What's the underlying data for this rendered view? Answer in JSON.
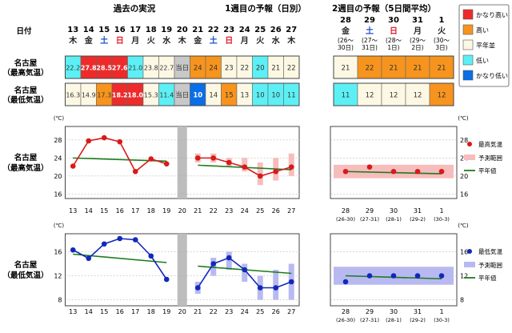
{
  "headers": {
    "past": "過去の実況",
    "week1": "1週目の予報（日別）",
    "week2": "2週目の予報（5日間平均）"
  },
  "date_label": "日付",
  "days": [
    {
      "d": "13",
      "w": "木",
      "wc": "#222"
    },
    {
      "d": "14",
      "w": "金",
      "wc": "#222"
    },
    {
      "d": "15",
      "w": "土",
      "wc": "#1f4fc8"
    },
    {
      "d": "16",
      "w": "日",
      "wc": "#e0202a"
    },
    {
      "d": "17",
      "w": "月",
      "wc": "#222"
    },
    {
      "d": "18",
      "w": "火",
      "wc": "#222"
    },
    {
      "d": "19",
      "w": "水",
      "wc": "#222"
    },
    {
      "d": "20",
      "w": "木",
      "wc": "#222"
    },
    {
      "d": "21",
      "w": "金",
      "wc": "#222"
    },
    {
      "d": "22",
      "w": "土",
      "wc": "#1f4fc8"
    },
    {
      "d": "23",
      "w": "日",
      "wc": "#e0202a"
    },
    {
      "d": "24",
      "w": "月",
      "wc": "#222"
    },
    {
      "d": "25",
      "w": "火",
      "wc": "#222"
    },
    {
      "d": "26",
      "w": "水",
      "wc": "#222"
    },
    {
      "d": "27",
      "w": "木",
      "wc": "#222"
    }
  ],
  "week2_days": [
    {
      "d": "28",
      "w": "金",
      "wc": "#222",
      "r1": "(26～",
      "r2": "30日)"
    },
    {
      "d": "29",
      "w": "土",
      "wc": "#1f4fc8",
      "r1": "(27～",
      "r2": "31日)"
    },
    {
      "d": "30",
      "w": "日",
      "wc": "#e0202a",
      "r1": "(28～",
      "r2": "1日)"
    },
    {
      "d": "31",
      "w": "月",
      "wc": "#222",
      "r1": "(29～",
      "r2": "2日)"
    },
    {
      "d": "1",
      "w": "火",
      "wc": "#222",
      "r1": "(30～",
      "r2": "3日)"
    }
  ],
  "rows": {
    "max": {
      "l1": "名古屋",
      "l2": "（最高気温）",
      "cells": [
        {
          "t": "22.2",
          "c": "cyan"
        },
        {
          "t": "27.8",
          "c": "red"
        },
        {
          "t": "28.5",
          "c": "red"
        },
        {
          "t": "27.6",
          "c": "red"
        },
        {
          "t": "21.0",
          "c": "cyan"
        },
        {
          "t": "23.8",
          "c": "normal"
        },
        {
          "t": "22.7",
          "c": "normal"
        },
        {
          "t": "当日",
          "c": "grey"
        },
        {
          "t": "24",
          "c": "orange"
        },
        {
          "t": "24",
          "c": "orange"
        },
        {
          "t": "23",
          "c": "normal"
        },
        {
          "t": "22",
          "c": "normal"
        },
        {
          "t": "20",
          "c": "cyan"
        },
        {
          "t": "21",
          "c": "normal"
        },
        {
          "t": "22",
          "c": "normal"
        }
      ],
      "w2": [
        {
          "t": "21",
          "c": "normal"
        },
        {
          "t": "22",
          "c": "orange"
        },
        {
          "t": "21",
          "c": "orange"
        },
        {
          "t": "21",
          "c": "orange"
        },
        {
          "t": "21",
          "c": "orange"
        }
      ]
    },
    "min": {
      "l1": "名古屋",
      "l2": "（最低気温）",
      "cells": [
        {
          "t": "16.3",
          "c": "normal"
        },
        {
          "t": "14.9",
          "c": "normal"
        },
        {
          "t": "17.3",
          "c": "orange"
        },
        {
          "t": "18.2",
          "c": "red"
        },
        {
          "t": "18.0",
          "c": "red"
        },
        {
          "t": "15.3",
          "c": "normal"
        },
        {
          "t": "11.4",
          "c": "cyan"
        },
        {
          "t": "当日",
          "c": "grey"
        },
        {
          "t": "10",
          "c": "blue"
        },
        {
          "t": "14",
          "c": "normal"
        },
        {
          "t": "15",
          "c": "orange"
        },
        {
          "t": "13",
          "c": "normal"
        },
        {
          "t": "10",
          "c": "cyan"
        },
        {
          "t": "10",
          "c": "cyan"
        },
        {
          "t": "11",
          "c": "cyan"
        }
      ],
      "w2": [
        {
          "t": "11",
          "c": "cyan"
        },
        {
          "t": "12",
          "c": "normal"
        },
        {
          "t": "12",
          "c": "normal"
        },
        {
          "t": "12",
          "c": "normal"
        },
        {
          "t": "12",
          "c": "orange"
        }
      ]
    }
  },
  "legend_categories": [
    {
      "label": "かなり高い",
      "c": "red"
    },
    {
      "label": "高い",
      "c": "orange"
    },
    {
      "label": "平年並",
      "c": "normal"
    },
    {
      "label": "低い",
      "c": "cyan"
    },
    {
      "label": "かなり低い",
      "c": "blue"
    }
  ],
  "colors": {
    "red": "#ee2b2b",
    "orange": "#f7941d",
    "normal": "#fdf8e4",
    "cyan": "#5cf0f5",
    "blue": "#0a6ee6",
    "grey": "#c8c8c8",
    "line_max": "#d71a1a",
    "line_min": "#1229b8",
    "normal_line": "#1e7b1e",
    "band_max": "#f7bcbc",
    "band_min": "#b9b9f2"
  },
  "chart_data": [
    {
      "type": "line",
      "row_label_1": "名古屋",
      "row_label_2": "（最高気温）",
      "unit": "(℃)",
      "ylim": [
        15,
        31
      ],
      "yticks": [
        16,
        20,
        24,
        28
      ],
      "x_labels": [
        "13",
        "14",
        "15",
        "16",
        "17",
        "18",
        "19",
        "20",
        "21",
        "22",
        "23",
        "24",
        "25",
        "26",
        "27"
      ],
      "w2_labels": [
        "28",
        "29",
        "30",
        "31",
        "1"
      ],
      "w2_sub": [
        "(26-30)",
        "(27-31)",
        "(28-1)",
        "(29-2)",
        "(30-3)"
      ],
      "observed": [
        22.2,
        27.8,
        28.5,
        27.6,
        21.0,
        23.8,
        22.7
      ],
      "forecast": [
        24,
        24,
        23,
        22,
        20,
        21,
        22
      ],
      "forecast_range": [
        [
          23,
          25
        ],
        [
          23,
          25
        ],
        [
          22,
          24
        ],
        [
          21,
          24
        ],
        [
          18,
          23
        ],
        [
          19,
          24
        ],
        [
          20,
          25
        ]
      ],
      "normal_left": [
        24.0,
        23.3
      ],
      "normal_mid": [
        22.4,
        21.4
      ],
      "normal_w2": [
        21.0,
        20.5
      ],
      "w2_values": [
        21,
        22,
        21,
        21,
        21
      ],
      "w2_range": [
        19.5,
        22.5
      ],
      "legend": [
        "最高気温",
        "予測範囲",
        "平年値"
      ]
    },
    {
      "type": "line",
      "row_label_1": "名古屋",
      "row_label_2": "（最低気温）",
      "unit": "(℃)",
      "ylim": [
        7,
        19
      ],
      "yticks": [
        8,
        12,
        16
      ],
      "x_labels": [
        "13",
        "14",
        "15",
        "16",
        "17",
        "18",
        "19",
        "20",
        "21",
        "22",
        "23",
        "24",
        "25",
        "26",
        "27"
      ],
      "w2_labels": [
        "28",
        "29",
        "30",
        "31",
        "1"
      ],
      "w2_sub": [
        "(26-30)",
        "(27-31)",
        "(28-1)",
        "(29-2)",
        "(30-3)"
      ],
      "observed": [
        16.3,
        14.9,
        17.3,
        18.2,
        18.0,
        15.3,
        11.4
      ],
      "forecast": [
        10,
        14,
        15,
        13,
        10,
        10,
        11
      ],
      "forecast_range": [
        [
          9,
          11
        ],
        [
          12,
          15
        ],
        [
          13,
          16
        ],
        [
          11,
          14
        ],
        [
          8,
          12
        ],
        [
          8,
          13
        ],
        [
          8,
          14
        ]
      ],
      "normal_left": [
        15.6,
        14.2
      ],
      "normal_mid": [
        13.6,
        12.4
      ],
      "normal_w2": [
        12.0,
        11.5
      ],
      "w2_values": [
        11,
        12,
        12,
        12,
        12
      ],
      "w2_range": [
        10.5,
        13.5
      ],
      "legend": [
        "最低気温",
        "予測範囲",
        "平年値"
      ]
    }
  ]
}
